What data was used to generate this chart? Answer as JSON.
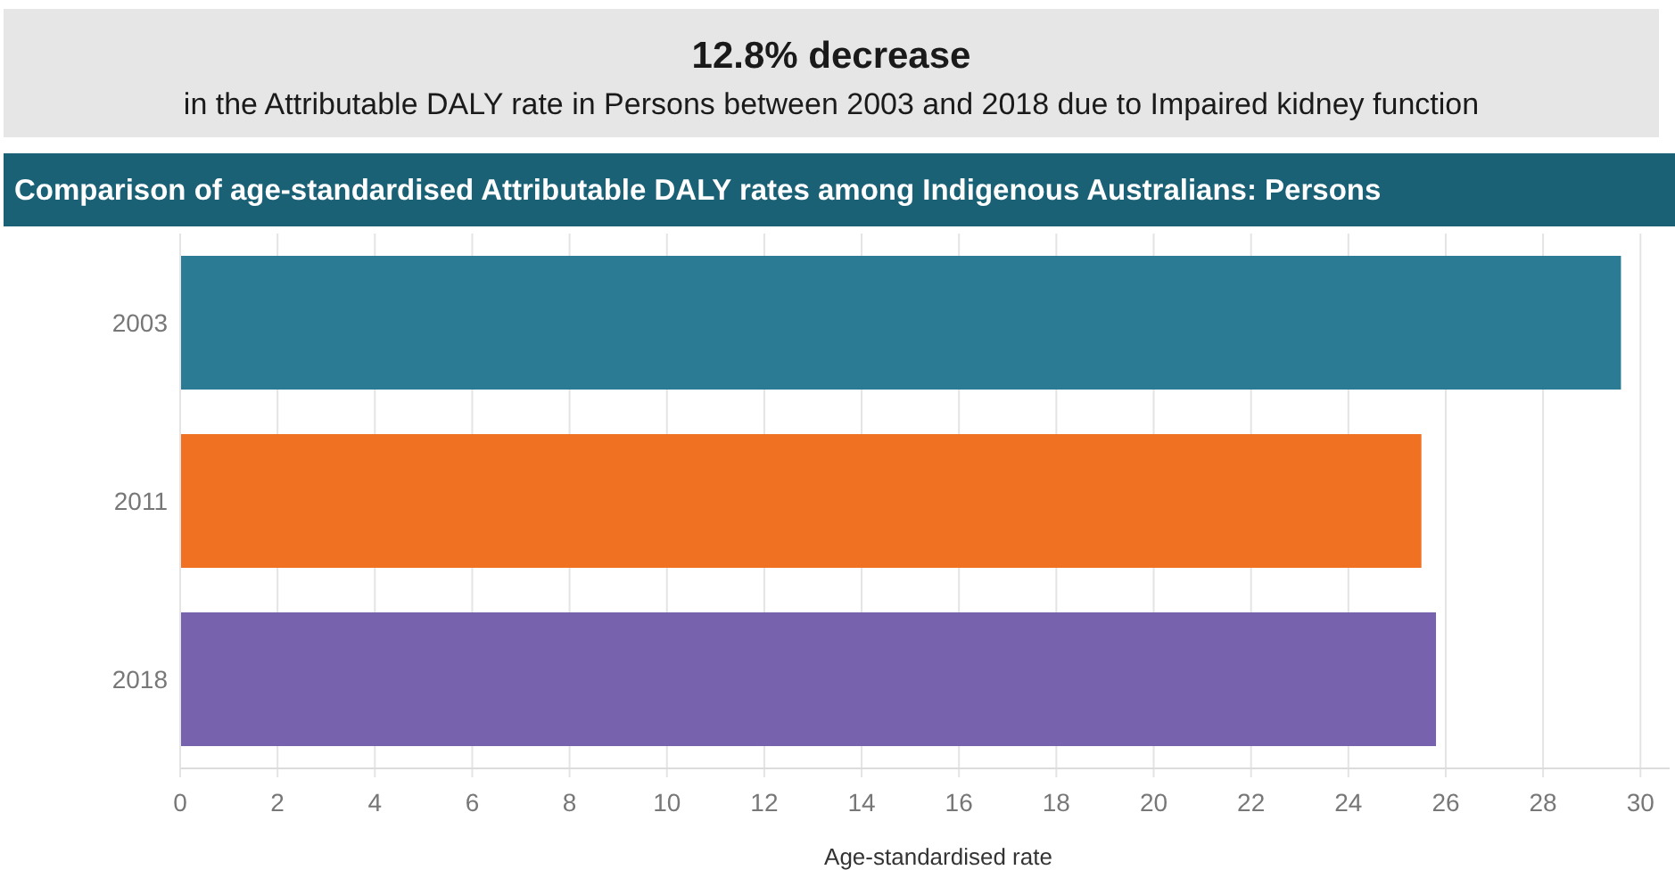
{
  "chart_data": {
    "type": "bar",
    "orientation": "horizontal",
    "title": "Comparison of age-standardised Attributable DALY rates among Indigenous Australians: Persons",
    "annotations": [
      "12.8% decrease",
      "in the Attributable DALY rate in Persons between 2003 and 2018 due to Impaired kidney function"
    ],
    "xlabel": "Age-standardised rate",
    "categories": [
      "2003",
      "2011",
      "2018"
    ],
    "values": [
      29.6,
      25.5,
      25.8
    ],
    "colors": [
      "#2a7b93",
      "#f07122",
      "#7762ad"
    ],
    "xlim": [
      0,
      30.6
    ],
    "xticks": [
      0,
      2,
      4,
      6,
      8,
      10,
      12,
      14,
      16,
      18,
      20,
      22,
      24,
      26,
      28,
      30
    ],
    "grid": "x"
  }
}
